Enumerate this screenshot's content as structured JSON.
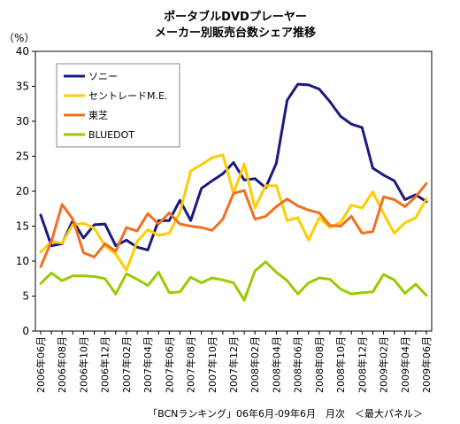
{
  "chart_data": {
    "type": "line",
    "title": "ポータブルDVDプレーヤー",
    "subtitle": "メーカー別販売台数シェア推移",
    "ylabel": "（%）",
    "xlabel": "",
    "ylim": [
      0,
      40
    ],
    "yticks": [
      0,
      5,
      10,
      15,
      20,
      25,
      30,
      35,
      40
    ],
    "grid": false,
    "legend_position": "top-left",
    "source_note": "「BCNランキング」06年6月-09年6月　月次　＜最大パネル＞",
    "x": [
      "2006年06月",
      "2006年07月",
      "2006年08月",
      "2006年09月",
      "2006年10月",
      "2006年11月",
      "2006年12月",
      "2007年01月",
      "2007年02月",
      "2007年03月",
      "2007年04月",
      "2007年05月",
      "2007年06月",
      "2007年07月",
      "2007年08月",
      "2007年09月",
      "2007年10月",
      "2007年11月",
      "2007年12月",
      "2008年01月",
      "2008年02月",
      "2008年03月",
      "2008年04月",
      "2008年05月",
      "2008年06月",
      "2008年07月",
      "2008年08月",
      "2008年09月",
      "2008年10月",
      "2008年11月",
      "2008年12月",
      "2009年01月",
      "2009年02月",
      "2009年03月",
      "2009年04月",
      "2009年05月",
      "2009年06月"
    ],
    "x_tick_labels": [
      "2006年06月",
      "2006年08月",
      "2006年10月",
      "2006年12月",
      "2007年02月",
      "2007年04月",
      "2007年06月",
      "2007年08月",
      "2007年10月",
      "2007年12月",
      "2008年02月",
      "2008年04月",
      "2008年06月",
      "2008年08月",
      "2008年10月",
      "2008年12月",
      "2009年02月",
      "2009年04月",
      "2009年06月"
    ],
    "series": [
      {
        "name": "ソニー",
        "color": "#1a1a80",
        "values": [
          16.6,
          12.2,
          12.5,
          15.8,
          13.3,
          15.2,
          15.3,
          12.2,
          13.0,
          12.0,
          11.6,
          15.8,
          15.8,
          18.7,
          15.8,
          20.4,
          21.5,
          22.5,
          24.1,
          21.6,
          21.8,
          20.5,
          24.0,
          33.0,
          35.3,
          35.2,
          34.6,
          32.8,
          30.7,
          29.6,
          29.1,
          23.3,
          22.3,
          21.5,
          18.8,
          19.5,
          18.5
        ]
      },
      {
        "name": "セントレードM.E.",
        "color": "#ffcc00",
        "values": [
          11.3,
          12.8,
          12.6,
          15.2,
          15.4,
          14.7,
          12.2,
          11.0,
          8.7,
          12.8,
          14.5,
          13.7,
          14.0,
          17.0,
          22.9,
          23.8,
          24.8,
          25.2,
          19.7,
          23.9,
          17.6,
          20.8,
          20.8,
          15.8,
          16.2,
          13.0,
          16.2,
          14.8,
          15.6,
          18.0,
          17.6,
          19.9,
          16.8,
          14.0,
          15.5,
          16.2,
          18.9
        ]
      },
      {
        "name": "東芝",
        "color": "#f07020",
        "values": [
          9.2,
          12.8,
          18.1,
          16.0,
          11.2,
          10.6,
          12.5,
          11.4,
          14.8,
          14.3,
          16.8,
          15.3,
          16.9,
          15.3,
          15.0,
          14.8,
          14.4,
          16.0,
          19.7,
          20.1,
          16.0,
          16.4,
          17.8,
          18.9,
          17.9,
          17.3,
          16.9,
          15.1,
          15.0,
          16.4,
          14.0,
          14.2,
          19.2,
          18.8,
          17.8,
          19.2,
          21.1
        ]
      },
      {
        "name": "BLUEDOT",
        "color": "#99cc00",
        "values": [
          6.8,
          8.3,
          7.2,
          7.9,
          7.9,
          7.8,
          7.5,
          5.3,
          8.2,
          7.4,
          6.5,
          8.4,
          5.5,
          5.6,
          7.7,
          6.9,
          7.6,
          7.3,
          6.9,
          4.4,
          8.6,
          9.9,
          8.4,
          7.2,
          5.3,
          6.9,
          7.6,
          7.4,
          6.0,
          5.3,
          5.5,
          5.6,
          8.1,
          7.3,
          5.4,
          6.7,
          5.1
        ]
      }
    ]
  }
}
